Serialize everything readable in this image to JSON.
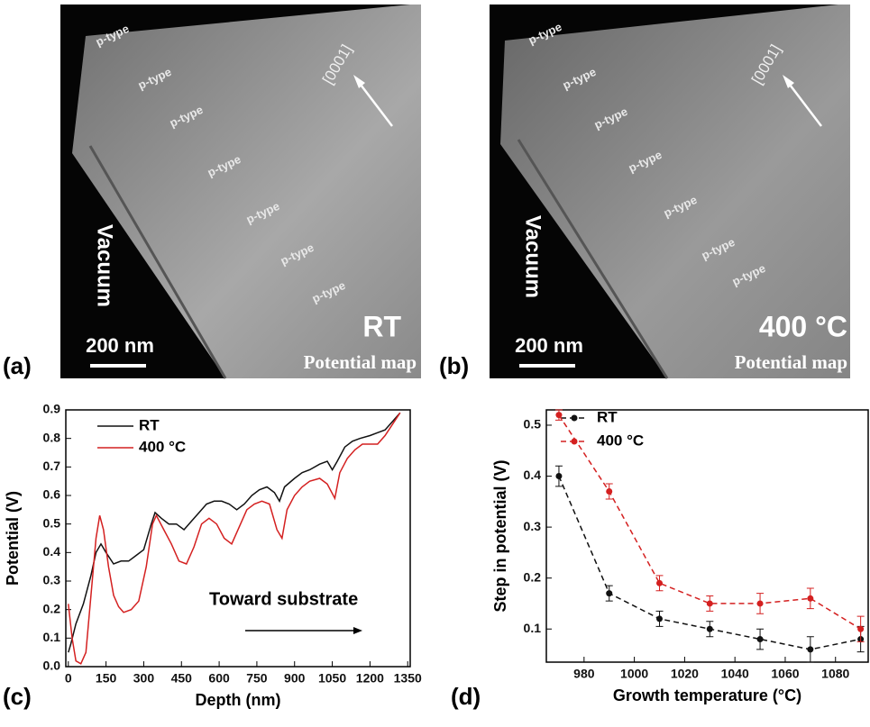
{
  "micrographs": [
    {
      "panel": "(a)",
      "condition": "RT",
      "subtitle": "Potential map",
      "scale": "200 nm",
      "vacuum": "Vacuum",
      "direction": "[0001]",
      "regions": [
        "p-type",
        "p-type",
        "p-type",
        "p-type",
        "p-type",
        "p-type",
        "p-type"
      ]
    },
    {
      "panel": "(b)",
      "condition": "400 °C",
      "subtitle": "Potential map",
      "scale": "200 nm",
      "vacuum": "Vacuum",
      "direction": "[0001]",
      "regions": [
        "p-type",
        "p-type",
        "p-type",
        "p-type",
        "p-type",
        "p-type",
        "p-type"
      ]
    }
  ],
  "chart_data": [
    {
      "type": "line",
      "panel": "(c)",
      "xlabel": "Depth (nm)",
      "ylabel": "Potential (V)",
      "annotation": "Toward substrate",
      "xlim": [
        -10,
        1360
      ],
      "ylim": [
        0,
        0.9
      ],
      "xticks": [
        0,
        150,
        300,
        450,
        600,
        750,
        900,
        1050,
        1200,
        1350
      ],
      "yticks": [
        {
          "value": 0,
          "label": "0.0"
        },
        0.1,
        0.2,
        0.3,
        0.4,
        0.5,
        0.6,
        0.7,
        0.8,
        0.9
      ],
      "series": [
        {
          "name": "RT",
          "color": "#111111",
          "x": [
            0,
            10,
            30,
            60,
            90,
            110,
            130,
            150,
            180,
            210,
            240,
            270,
            300,
            330,
            345,
            370,
            400,
            430,
            460,
            490,
            520,
            550,
            580,
            610,
            640,
            670,
            700,
            730,
            760,
            790,
            820,
            840,
            860,
            900,
            930,
            960,
            1000,
            1030,
            1050,
            1070,
            1100,
            1130,
            1160,
            1200,
            1230,
            1260,
            1290,
            1320
          ],
          "values": [
            0.05,
            0.08,
            0.15,
            0.22,
            0.32,
            0.4,
            0.43,
            0.4,
            0.36,
            0.37,
            0.37,
            0.39,
            0.41,
            0.5,
            0.54,
            0.52,
            0.5,
            0.5,
            0.48,
            0.51,
            0.54,
            0.57,
            0.58,
            0.58,
            0.57,
            0.55,
            0.57,
            0.6,
            0.62,
            0.63,
            0.61,
            0.58,
            0.63,
            0.66,
            0.68,
            0.69,
            0.71,
            0.72,
            0.69,
            0.72,
            0.77,
            0.79,
            0.8,
            0.81,
            0.82,
            0.83,
            0.86,
            0.89
          ]
        },
        {
          "name": "400 °C",
          "color": "#d42020",
          "x": [
            0,
            15,
            30,
            50,
            70,
            90,
            110,
            125,
            140,
            160,
            180,
            200,
            220,
            250,
            280,
            310,
            335,
            350,
            380,
            410,
            440,
            470,
            500,
            530,
            560,
            590,
            620,
            650,
            680,
            710,
            740,
            770,
            800,
            830,
            850,
            870,
            900,
            930,
            960,
            1000,
            1030,
            1060,
            1080,
            1110,
            1140,
            1170,
            1200,
            1230,
            1260,
            1290,
            1320
          ],
          "values": [
            0.22,
            0.1,
            0.02,
            0.01,
            0.05,
            0.25,
            0.45,
            0.53,
            0.48,
            0.35,
            0.25,
            0.21,
            0.19,
            0.2,
            0.23,
            0.35,
            0.5,
            0.53,
            0.48,
            0.43,
            0.37,
            0.36,
            0.42,
            0.5,
            0.52,
            0.5,
            0.45,
            0.43,
            0.49,
            0.55,
            0.57,
            0.58,
            0.57,
            0.48,
            0.45,
            0.55,
            0.6,
            0.63,
            0.65,
            0.66,
            0.64,
            0.59,
            0.68,
            0.73,
            0.76,
            0.78,
            0.78,
            0.78,
            0.81,
            0.85,
            0.89
          ]
        }
      ]
    },
    {
      "type": "errorbar",
      "panel": "(d)",
      "xlabel": "Growth temperature (°C)",
      "ylabel": "Step in potential (V)",
      "xlim": [
        965,
        1093
      ],
      "ylim": [
        0.035,
        0.53
      ],
      "xticks": [
        980,
        1000,
        1020,
        1040,
        1060,
        1080
      ],
      "yticks": [
        0.1,
        0.2,
        0.3,
        0.4,
        0.5
      ],
      "x": [
        970,
        990,
        1010,
        1030,
        1050,
        1070,
        1090
      ],
      "series": [
        {
          "name": "RT",
          "color": "#111111",
          "values": [
            0.4,
            0.17,
            0.12,
            0.1,
            0.08,
            0.06,
            0.08
          ],
          "errors": [
            0.02,
            0.015,
            0.015,
            0.015,
            0.02,
            0.025,
            0.025
          ]
        },
        {
          "name": "400 °C",
          "color": "#d42020",
          "values": [
            0.52,
            0.37,
            0.19,
            0.15,
            0.15,
            0.16,
            0.1
          ],
          "errors": [
            0.01,
            0.015,
            0.015,
            0.015,
            0.02,
            0.02,
            0.025
          ]
        }
      ]
    }
  ]
}
